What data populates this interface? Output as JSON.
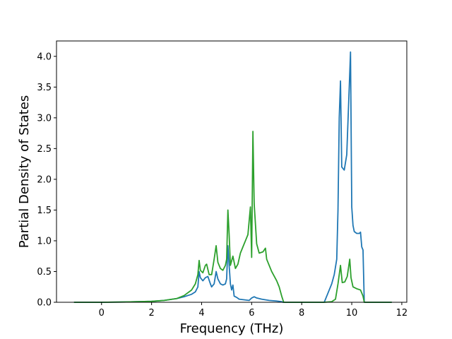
{
  "chart_data": {
    "type": "line",
    "title": "",
    "xlabel": "Frequency (THz)",
    "ylabel": "Partial Density of States",
    "xlim": [
      -1.8,
      12.2
    ],
    "ylim": [
      0,
      4.25
    ],
    "xticks": [
      0,
      2,
      4,
      6,
      8,
      10,
      12
    ],
    "yticks": [
      0.0,
      0.5,
      1.0,
      1.5,
      2.0,
      2.5,
      3.0,
      3.5,
      4.0
    ],
    "xtick_labels": [
      "0",
      "2",
      "4",
      "6",
      "8",
      "10",
      "12"
    ],
    "ytick_labels": [
      "0.0",
      "0.5",
      "1.0",
      "1.5",
      "2.0",
      "2.5",
      "3.0",
      "3.5",
      "4.0"
    ],
    "grid": false,
    "legend": "none",
    "series": [
      {
        "color": "#1f77b4",
        "points": [
          [
            -1.1,
            0
          ],
          [
            0,
            0
          ],
          [
            1,
            0.005
          ],
          [
            2,
            0.015
          ],
          [
            2.5,
            0.03
          ],
          [
            3,
            0.06
          ],
          [
            3.3,
            0.09
          ],
          [
            3.6,
            0.13
          ],
          [
            3.75,
            0.17
          ],
          [
            3.85,
            0.25
          ],
          [
            3.9,
            0.5
          ],
          [
            3.95,
            0.4
          ],
          [
            4.05,
            0.35
          ],
          [
            4.15,
            0.4
          ],
          [
            4.25,
            0.42
          ],
          [
            4.35,
            0.3
          ],
          [
            4.4,
            0.25
          ],
          [
            4.5,
            0.3
          ],
          [
            4.58,
            0.5
          ],
          [
            4.65,
            0.38
          ],
          [
            4.75,
            0.3
          ],
          [
            4.85,
            0.28
          ],
          [
            4.95,
            0.3
          ],
          [
            5.0,
            0.38
          ],
          [
            5.05,
            0.92
          ],
          [
            5.1,
            0.6
          ],
          [
            5.15,
            0.3
          ],
          [
            5.2,
            0.2
          ],
          [
            5.25,
            0.28
          ],
          [
            5.3,
            0.1
          ],
          [
            5.4,
            0.08
          ],
          [
            5.5,
            0.05
          ],
          [
            5.7,
            0.04
          ],
          [
            5.9,
            0.03
          ],
          [
            6.0,
            0.07
          ],
          [
            6.1,
            0.09
          ],
          [
            6.2,
            0.07
          ],
          [
            6.4,
            0.05
          ],
          [
            6.7,
            0.03
          ],
          [
            7.0,
            0.02
          ],
          [
            7.2,
            0.01
          ],
          [
            7.25,
            0
          ],
          [
            8.0,
            0
          ],
          [
            8.9,
            0
          ],
          [
            9.0,
            0.1
          ],
          [
            9.1,
            0.2
          ],
          [
            9.2,
            0.3
          ],
          [
            9.3,
            0.45
          ],
          [
            9.4,
            0.7
          ],
          [
            9.45,
            1.5
          ],
          [
            9.5,
            3.0
          ],
          [
            9.55,
            3.6
          ],
          [
            9.6,
            2.2
          ],
          [
            9.7,
            2.15
          ],
          [
            9.8,
            2.4
          ],
          [
            9.9,
            3.5
          ],
          [
            9.95,
            4.07
          ],
          [
            10.0,
            1.55
          ],
          [
            10.05,
            1.25
          ],
          [
            10.1,
            1.15
          ],
          [
            10.2,
            1.12
          ],
          [
            10.3,
            1.12
          ],
          [
            10.35,
            1.14
          ],
          [
            10.4,
            0.9
          ],
          [
            10.45,
            0.85
          ],
          [
            10.5,
            0
          ],
          [
            11.6,
            0
          ]
        ]
      },
      {
        "color": "#2ca02c",
        "points": [
          [
            -1.1,
            0
          ],
          [
            0,
            0
          ],
          [
            1,
            0.005
          ],
          [
            2,
            0.015
          ],
          [
            2.5,
            0.03
          ],
          [
            3,
            0.06
          ],
          [
            3.3,
            0.11
          ],
          [
            3.6,
            0.2
          ],
          [
            3.75,
            0.3
          ],
          [
            3.85,
            0.45
          ],
          [
            3.9,
            0.68
          ],
          [
            3.95,
            0.52
          ],
          [
            4.05,
            0.48
          ],
          [
            4.15,
            0.6
          ],
          [
            4.2,
            0.62
          ],
          [
            4.3,
            0.45
          ],
          [
            4.4,
            0.45
          ],
          [
            4.5,
            0.7
          ],
          [
            4.58,
            0.92
          ],
          [
            4.65,
            0.65
          ],
          [
            4.75,
            0.55
          ],
          [
            4.85,
            0.52
          ],
          [
            4.95,
            0.6
          ],
          [
            5.0,
            0.7
          ],
          [
            5.05,
            1.5
          ],
          [
            5.1,
            1.1
          ],
          [
            5.15,
            0.6
          ],
          [
            5.25,
            0.75
          ],
          [
            5.35,
            0.55
          ],
          [
            5.45,
            0.62
          ],
          [
            5.55,
            0.8
          ],
          [
            5.65,
            0.9
          ],
          [
            5.75,
            1.0
          ],
          [
            5.85,
            1.1
          ],
          [
            5.95,
            1.55
          ],
          [
            6.0,
            0.73
          ],
          [
            6.05,
            2.78
          ],
          [
            6.1,
            1.6
          ],
          [
            6.2,
            0.95
          ],
          [
            6.3,
            0.8
          ],
          [
            6.45,
            0.82
          ],
          [
            6.55,
            0.88
          ],
          [
            6.6,
            0.7
          ],
          [
            6.8,
            0.5
          ],
          [
            7.0,
            0.35
          ],
          [
            7.1,
            0.25
          ],
          [
            7.2,
            0.1
          ],
          [
            7.28,
            0
          ],
          [
            8.0,
            0
          ],
          [
            8.9,
            0
          ],
          [
            9.2,
            0.01
          ],
          [
            9.35,
            0.05
          ],
          [
            9.45,
            0.3
          ],
          [
            9.55,
            0.6
          ],
          [
            9.62,
            0.32
          ],
          [
            9.72,
            0.33
          ],
          [
            9.82,
            0.42
          ],
          [
            9.92,
            0.7
          ],
          [
            9.97,
            0.4
          ],
          [
            10.05,
            0.25
          ],
          [
            10.2,
            0.22
          ],
          [
            10.35,
            0.2
          ],
          [
            10.45,
            0.1
          ],
          [
            10.5,
            0
          ],
          [
            11.6,
            0
          ]
        ]
      }
    ]
  }
}
